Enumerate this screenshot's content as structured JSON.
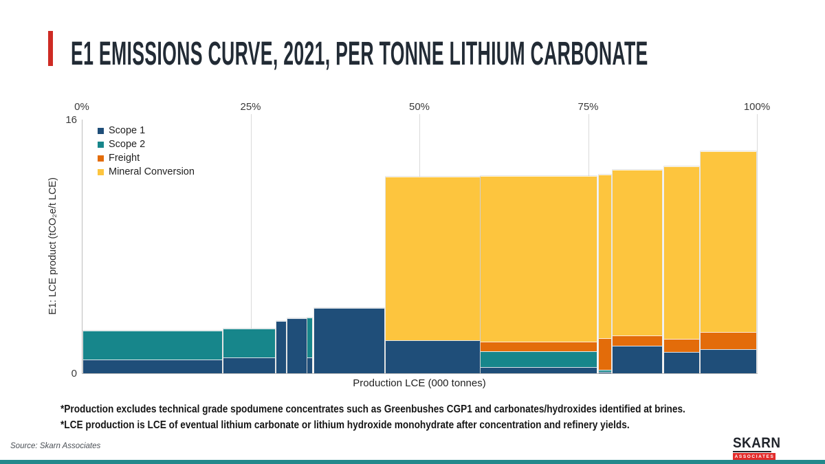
{
  "header": {
    "title": "E1 EMISSIONS CURVE, 2021, PER TONNE LITHIUM CARBONATE"
  },
  "chart_data": {
    "type": "bar",
    "subtype": "variable-width stacked cost curve",
    "title": "E1 EMISSIONS CURVE, 2021, PER TONNE LITHIUM CARBONATE",
    "xlabel": "Production LCE (000 tonnes)",
    "ylabel": "E1: LCE product (tCO₂e/t LCE)",
    "ylim": [
      0,
      16
    ],
    "y_tick_labels": {
      "max": "16",
      "min": "0"
    },
    "grid": "vertical-only",
    "legend_position": "top-left-inside",
    "top_axis_ticks": [
      {
        "label": "0%",
        "pct": 0
      },
      {
        "label": "25%",
        "pct": 25
      },
      {
        "label": "50%",
        "pct": 50
      },
      {
        "label": "75%",
        "pct": 75
      },
      {
        "label": "100%",
        "pct": 100
      }
    ],
    "legend": [
      {
        "key": "scope1",
        "label": "Scope 1",
        "color": "#1F4E79"
      },
      {
        "key": "scope2",
        "label": "Scope 2",
        "color": "#17868B"
      },
      {
        "key": "freight",
        "label": "Freight",
        "color": "#E36C0A"
      },
      {
        "key": "mineral",
        "label": "Mineral Conversion",
        "color": "#FDC53E"
      }
    ],
    "bars": [
      {
        "left_pct": 0.1,
        "width_pct": 20.7,
        "values": {
          "scope1": 0.85,
          "scope2": 1.85,
          "freight": 0,
          "mineral": 0
        },
        "total": 2.7
      },
      {
        "left_pct": 20.85,
        "width_pct": 7.8,
        "values": {
          "scope1": 1.0,
          "scope2": 1.8,
          "freight": 0,
          "mineral": 0
        },
        "total": 2.8
      },
      {
        "left_pct": 28.75,
        "width_pct": 1.45,
        "values": {
          "scope1": 3.3,
          "scope2": 0,
          "freight": 0,
          "mineral": 0
        },
        "total": 3.3
      },
      {
        "left_pct": 30.3,
        "width_pct": 2.95,
        "values": {
          "scope1": 3.45,
          "scope2": 0,
          "freight": 0,
          "mineral": 0
        },
        "total": 3.45
      },
      {
        "left_pct": 33.35,
        "width_pct": 0.8,
        "values": {
          "scope1": 1.0,
          "scope2": 2.5,
          "freight": 0,
          "mineral": 0
        },
        "total": 3.5
      },
      {
        "left_pct": 34.3,
        "width_pct": 10.5,
        "values": {
          "scope1": 4.1,
          "scope2": 0,
          "freight": 0,
          "mineral": 0
        },
        "total": 4.1
      },
      {
        "left_pct": 44.9,
        "width_pct": 14.05,
        "values": {
          "scope1": 2.1,
          "scope2": 0,
          "freight": 0,
          "mineral": 10.3
        },
        "total": 12.4
      },
      {
        "left_pct": 59.0,
        "width_pct": 17.3,
        "values": {
          "scope1": 0.4,
          "scope2": 1.0,
          "freight": 0.6,
          "mineral": 10.45
        },
        "total": 12.45
      },
      {
        "left_pct": 76.5,
        "width_pct": 1.95,
        "values": {
          "scope1": 0.08,
          "scope2": 0.12,
          "freight": 2.0,
          "mineral": 10.35
        },
        "total": 12.55
      },
      {
        "left_pct": 78.55,
        "width_pct": 7.4,
        "values": {
          "scope1": 1.75,
          "scope2": 0,
          "freight": 0.65,
          "mineral": 10.45
        },
        "total": 12.85
      },
      {
        "left_pct": 86.1,
        "width_pct": 5.3,
        "values": {
          "scope1": 1.35,
          "scope2": 0,
          "freight": 0.8,
          "mineral": 10.9
        },
        "total": 13.05
      },
      {
        "left_pct": 91.5,
        "width_pct": 8.45,
        "values": {
          "scope1": 1.5,
          "scope2": 0,
          "freight": 1.1,
          "mineral": 11.4
        },
        "total": 14.0
      }
    ]
  },
  "footnotes": {
    "lines": [
      "*Production excludes technical grade spodumene concentrates such as Greenbushes CGP1 and carbonates/hydroxides identified at brines.",
      "*LCE production is LCE of eventual lithium carbonate or lithium hydroxide monohydrate after concentration and refinery yields."
    ]
  },
  "source": {
    "label": "Source: Skarn Associates"
  },
  "logo": {
    "name": "SKARN",
    "sub": "ASSOCIATES"
  },
  "colors": {
    "accent_red": "#CE2B24",
    "logo_red": "#E32C2B",
    "title_text": "#222B35",
    "gridline": "#DADADA",
    "axis_line": "#BDBDBD",
    "footer_bar_teal": "#23898C"
  }
}
